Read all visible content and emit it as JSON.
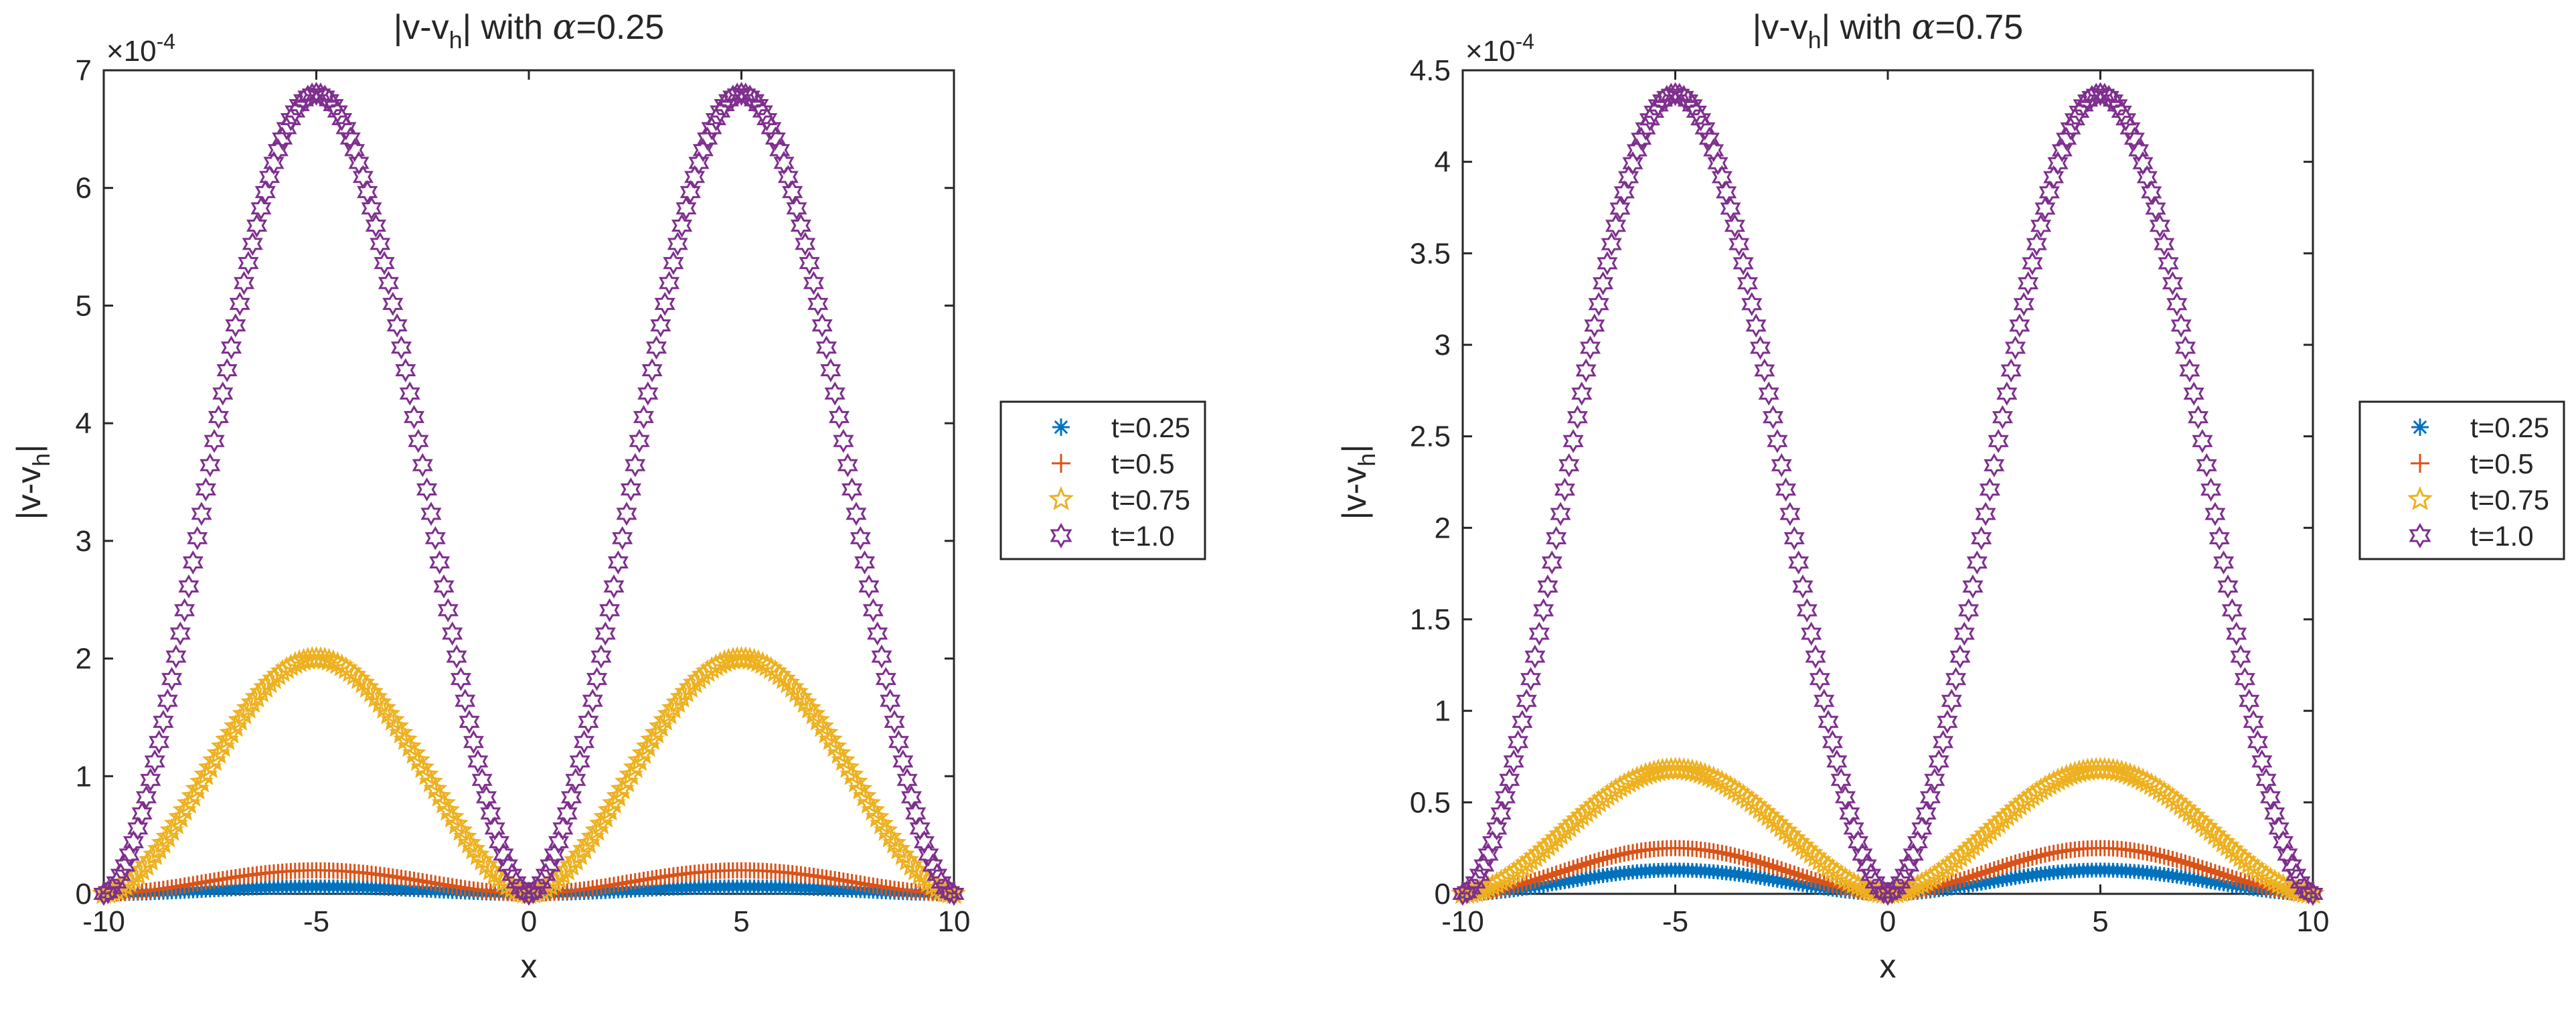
{
  "chart_data": [
    {
      "type": "scatter",
      "title_prefix": "|v-v",
      "title_sub": "h",
      "title_mid": "| with ",
      "title_symbol": "α",
      "title_value": "=0.25",
      "xlabel": "x",
      "ylabel_prefix": "|v-v",
      "ylabel_sub": "h",
      "ylabel_suffix": "|",
      "multiplier_base": "×10",
      "multiplier_exp": "-4",
      "xlim": [
        -10,
        10
      ],
      "ylim": [
        0,
        7
      ],
      "xticks": [
        -10,
        -5,
        0,
        5,
        10
      ],
      "xtick_labels": [
        "-10",
        "-5",
        "0",
        "5",
        "10"
      ],
      "yticks": [
        0,
        1,
        2,
        3,
        4,
        5,
        6,
        7
      ],
      "ytick_labels": [
        "0",
        "1",
        "2",
        "3",
        "4",
        "5",
        "6",
        "7"
      ],
      "legend_position": "outside-right",
      "series": [
        {
          "name": "t=0.25",
          "marker": "asterisk",
          "color": "#0072BD",
          "peak": 0.06
        },
        {
          "name": "t=0.5",
          "marker": "plus",
          "color": "#D95319",
          "peak": 0.2
        },
        {
          "name": "t=0.75",
          "marker": "star",
          "color": "#EDB120",
          "peak": 2.0
        },
        {
          "name": "t=1.0",
          "marker": "hexagram",
          "color": "#7E2F8E",
          "peak": 6.8
        }
      ]
    },
    {
      "type": "scatter",
      "title_prefix": "|v-v",
      "title_sub": "h",
      "title_mid": "| with ",
      "title_symbol": "α",
      "title_value": "=0.75",
      "xlabel": "x",
      "ylabel_prefix": "|v-v",
      "ylabel_sub": "h",
      "ylabel_suffix": "|",
      "multiplier_base": "×10",
      "multiplier_exp": "-4",
      "xlim": [
        -10,
        10
      ],
      "ylim": [
        0,
        4.5
      ],
      "xticks": [
        -10,
        -5,
        0,
        5,
        10
      ],
      "xtick_labels": [
        "-10",
        "-5",
        "0",
        "5",
        "10"
      ],
      "yticks": [
        0,
        0.5,
        1,
        1.5,
        2,
        2.5,
        3,
        3.5,
        4,
        4.5
      ],
      "ytick_labels": [
        "0",
        "0.5",
        "1",
        "1.5",
        "2",
        "2.5",
        "3",
        "3.5",
        "4",
        "4.5"
      ],
      "legend_position": "outside-right",
      "series": [
        {
          "name": "t=0.25",
          "marker": "asterisk",
          "color": "#0072BD",
          "peak": 0.13
        },
        {
          "name": "t=0.5",
          "marker": "plus",
          "color": "#D95319",
          "peak": 0.25
        },
        {
          "name": "t=0.75",
          "marker": "star",
          "color": "#EDB120",
          "peak": 0.68
        },
        {
          "name": "t=1.0",
          "marker": "hexagram",
          "color": "#7E2F8E",
          "peak": 4.37
        }
      ]
    }
  ]
}
